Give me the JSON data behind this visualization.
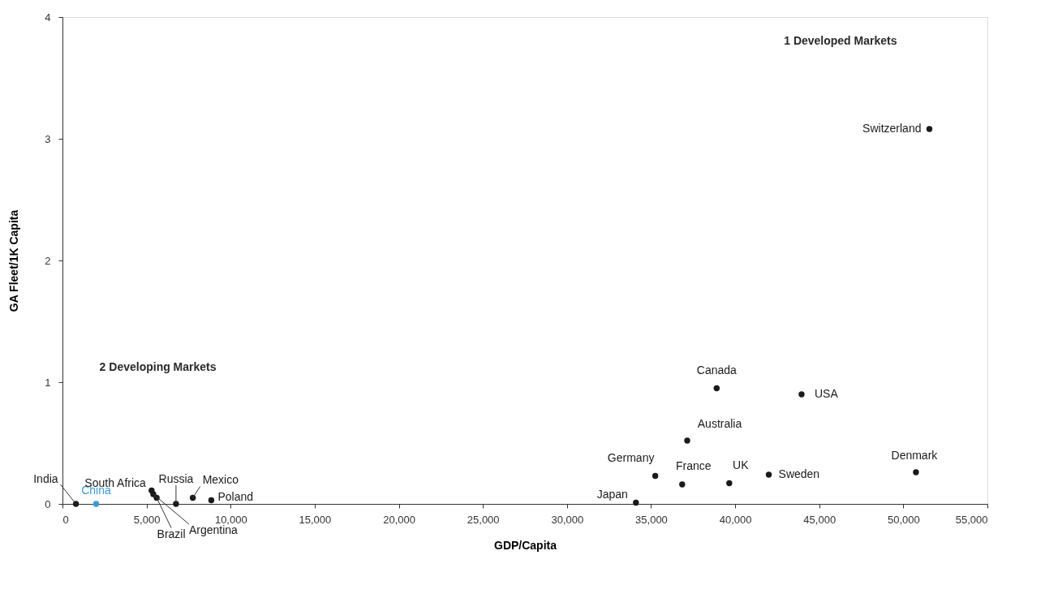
{
  "chart_data": {
    "type": "scatter",
    "xlabel": "GDP/Capita",
    "ylabel": "GA Fleet/1K Capita",
    "annotations": [
      "1 Developed Markets",
      "2 Developing Markets"
    ],
    "xlim": [
      0,
      55000
    ],
    "ylim": [
      0,
      4
    ],
    "xticks": [
      0,
      {
        "value": 5000,
        "label": "5,000"
      },
      {
        "value": 10000,
        "label": "10,000"
      },
      {
        "value": 15000,
        "label": "15,000"
      },
      {
        "value": 20000,
        "label": "20,000"
      },
      {
        "value": 25000,
        "label": "25,000"
      },
      {
        "value": 30000,
        "label": "30,000"
      },
      {
        "value": 35000,
        "label": "35,000"
      },
      {
        "value": 40000,
        "label": "40,000"
      },
      {
        "value": 45000,
        "label": "45,000"
      },
      {
        "value": 50000,
        "label": "50,000"
      },
      {
        "value": 55000,
        "label": "55,000"
      }
    ],
    "yticks": [
      0,
      1,
      2,
      3,
      4
    ],
    "grid": false,
    "legend": false,
    "marker": "circle",
    "series": [
      {
        "name": "India",
        "color": "#1a1a1a",
        "x": [
          800
        ],
        "values": [
          0.0
        ]
      },
      {
        "name": "China",
        "color": "#3a9ad9",
        "x": [
          2000
        ],
        "values": [
          0.0
        ]
      },
      {
        "name": "South Africa",
        "color": "#1a1a1a",
        "x": [
          5300
        ],
        "values": [
          0.11
        ]
      },
      {
        "name": "Argentina",
        "color": "#1a1a1a",
        "x": [
          5400
        ],
        "values": [
          0.08
        ]
      },
      {
        "name": "Brazil",
        "color": "#1a1a1a",
        "x": [
          5600
        ],
        "values": [
          0.05
        ]
      },
      {
        "name": "Russia",
        "color": "#1a1a1a",
        "x": [
          6750
        ],
        "values": [
          0.0
        ]
      },
      {
        "name": "Mexico",
        "color": "#1a1a1a",
        "x": [
          7750
        ],
        "values": [
          0.05
        ]
      },
      {
        "name": "Poland",
        "color": "#1a1a1a",
        "x": [
          8850
        ],
        "values": [
          0.03
        ]
      },
      {
        "name": "Japan",
        "color": "#1a1a1a",
        "x": [
          34100
        ],
        "values": [
          0.01
        ]
      },
      {
        "name": "Germany",
        "color": "#1a1a1a",
        "x": [
          35250
        ],
        "values": [
          0.23
        ]
      },
      {
        "name": "France",
        "color": "#1a1a1a",
        "x": [
          36850
        ],
        "values": [
          0.16
        ]
      },
      {
        "name": "Australia",
        "color": "#1a1a1a",
        "x": [
          37150
        ],
        "values": [
          0.52
        ]
      },
      {
        "name": "UK",
        "color": "#1a1a1a",
        "x": [
          39650
        ],
        "values": [
          0.17
        ]
      },
      {
        "name": "Sweden",
        "color": "#1a1a1a",
        "x": [
          42000
        ],
        "values": [
          0.24
        ]
      },
      {
        "name": "Canada",
        "color": "#1a1a1a",
        "x": [
          38900
        ],
        "values": [
          0.95
        ]
      },
      {
        "name": "USA",
        "color": "#1a1a1a",
        "x": [
          43950
        ],
        "values": [
          0.9
        ]
      },
      {
        "name": "Denmark",
        "color": "#1a1a1a",
        "x": [
          50750
        ],
        "values": [
          0.26
        ]
      },
      {
        "name": "Switzerland",
        "color": "#1a1a1a",
        "x": [
          51550
        ],
        "values": [
          3.08
        ]
      }
    ]
  }
}
